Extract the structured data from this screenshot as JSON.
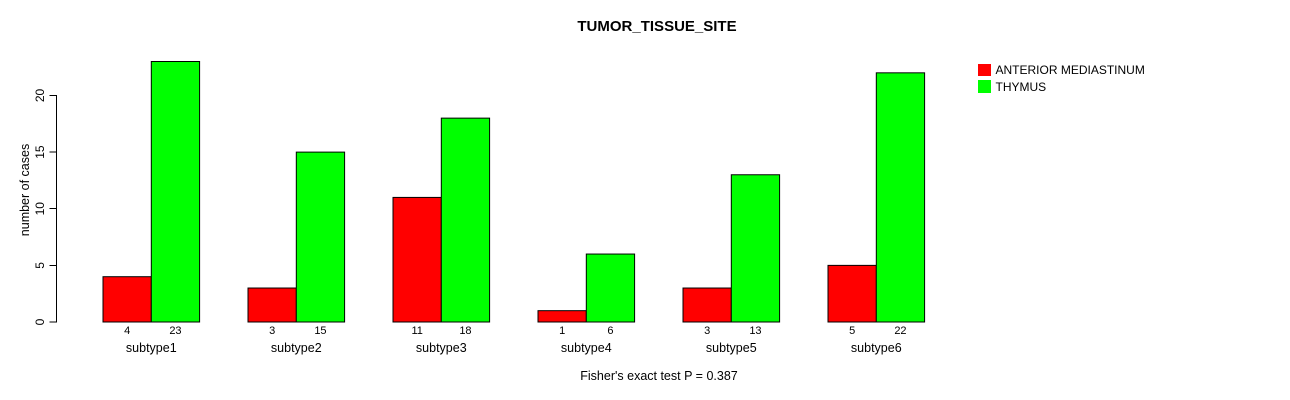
{
  "chart_data": {
    "type": "bar",
    "title": "TUMOR_TISSUE_SITE",
    "ylabel": "number of cases",
    "xlabel": "",
    "footer": "Fisher's exact test P = 0.387",
    "categories": [
      "subtype1",
      "subtype2",
      "subtype3",
      "subtype4",
      "subtype5",
      "subtype6"
    ],
    "series": [
      {
        "name": "ANTERIOR MEDIASTINUM",
        "color": "#ff0000",
        "values": [
          4,
          3,
          11,
          1,
          3,
          5
        ]
      },
      {
        "name": "THYMUS",
        "color": "#00ff00",
        "values": [
          23,
          15,
          18,
          6,
          13,
          22
        ]
      }
    ],
    "bar_count_labels": [
      [
        "4",
        "23"
      ],
      [
        "3",
        "15"
      ],
      [
        "11",
        "18"
      ],
      [
        "1",
        "6"
      ],
      [
        "3",
        "13"
      ],
      [
        "5",
        "22"
      ]
    ],
    "yticks": [
      0,
      5,
      10,
      15,
      20
    ],
    "ylim": [
      0,
      20
    ],
    "grid": "off",
    "legend_position": "top-right",
    "bar_border_color": "#000000",
    "axis_color": "#000000"
  }
}
